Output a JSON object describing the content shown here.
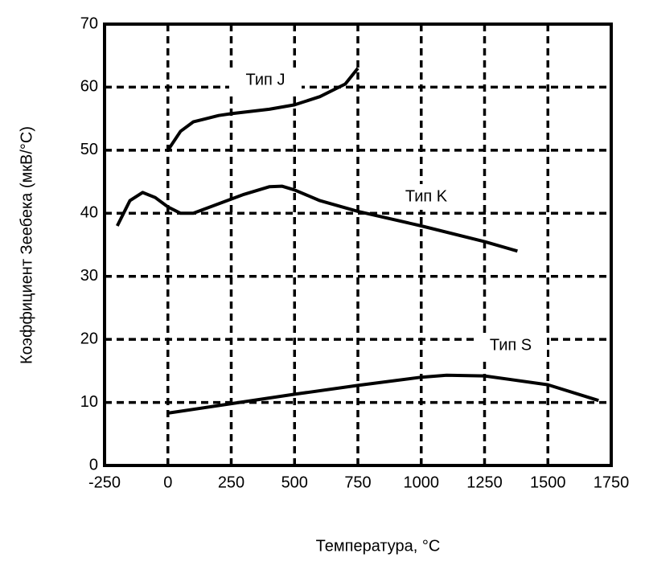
{
  "chart_data": {
    "type": "line",
    "x_label": "Температура, °C",
    "y_label": "Коэффициент Зеебека (мкВ/°C)",
    "xlim": [
      -250,
      1750
    ],
    "xticks": [
      -250,
      0,
      250,
      500,
      750,
      1000,
      1250,
      1500,
      1750
    ],
    "ylim": [
      0,
      70
    ],
    "yticks": [
      0,
      10,
      20,
      30,
      40,
      50,
      60,
      70
    ],
    "grid": true,
    "series": [
      {
        "name": "Тип J",
        "color": "#000000",
        "x": [
          0,
          50,
          100,
          200,
          250,
          400,
          500,
          600,
          700,
          750
        ],
        "values": [
          50,
          53,
          54.5,
          55.5,
          55.8,
          56.5,
          57.2,
          58.5,
          60.5,
          63
        ]
      },
      {
        "name": "Тип K",
        "color": "#000000",
        "x": [
          -200,
          -150,
          -100,
          -50,
          0,
          50,
          100,
          200,
          300,
          400,
          450,
          500,
          600,
          750,
          1000,
          1250,
          1380
        ],
        "values": [
          38,
          42,
          43.3,
          42.5,
          41,
          40,
          40,
          41.5,
          43,
          44.2,
          44.3,
          43.7,
          42,
          40.3,
          38,
          35.5,
          34
        ]
      },
      {
        "name": "Тип S",
        "color": "#000000",
        "x": [
          0,
          250,
          500,
          750,
          1000,
          1100,
          1250,
          1500,
          1700
        ],
        "values": [
          8.3,
          9.8,
          11.3,
          12.7,
          14,
          14.3,
          14.2,
          12.8,
          10.3
        ]
      }
    ]
  }
}
